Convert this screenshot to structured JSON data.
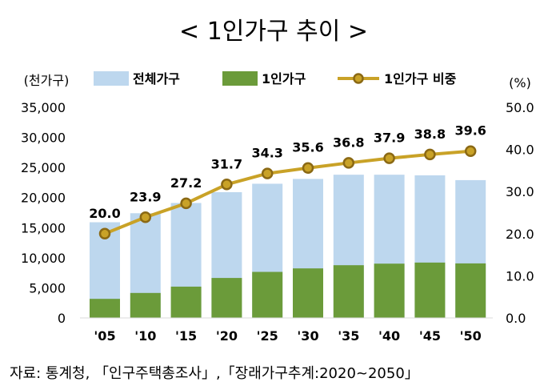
{
  "title": "< 1인가구 추이 >",
  "source": "자료: 통계청, 「인구주택총조사」,「장래가구추계:2020~2050」",
  "chart_data": {
    "type": "bar+line",
    "title": "< 1인가구 추이 >",
    "left_axis_unit": "(천가구)",
    "right_axis_unit": "(%)",
    "categories": [
      "'05",
      "'10",
      "'15",
      "'20",
      "'25",
      "'30",
      "'35",
      "'40",
      "'45",
      "'50"
    ],
    "left_ylim": [
      0,
      35000
    ],
    "left_ticks": [
      "35,000",
      "30,000",
      "25,000",
      "20,000",
      "15,000",
      "10,000",
      "5,000",
      "0"
    ],
    "left_tick_values": [
      35000,
      30000,
      25000,
      20000,
      15000,
      10000,
      5000,
      0
    ],
    "right_ylim": [
      0,
      50
    ],
    "right_ticks": [
      "50.0",
      "40.0",
      "30.0",
      "20.0",
      "10.0",
      "0.0"
    ],
    "right_tick_values": [
      50,
      40,
      30,
      20,
      10,
      0
    ],
    "series": [
      {
        "name": "전체가구",
        "type": "bar",
        "axis": "left",
        "color": "#bdd7ee",
        "values": [
          15900,
          17400,
          19100,
          20900,
          22300,
          23100,
          23800,
          23800,
          23700,
          22900
        ]
      },
      {
        "name": "1인가구",
        "type": "bar",
        "axis": "left",
        "color": "#6b9b3a",
        "values": [
          3170,
          4150,
          5200,
          6640,
          7650,
          8230,
          8760,
          9020,
          9200,
          9060
        ]
      },
      {
        "name": "1인가구 비중",
        "type": "line",
        "axis": "right",
        "color": "#c9a227",
        "marker_color": "#8b6914",
        "values": [
          20.0,
          23.9,
          27.2,
          31.7,
          34.3,
          35.6,
          36.8,
          37.9,
          38.8,
          39.6
        ],
        "labels": [
          "20.0",
          "23.9",
          "27.2",
          "31.7",
          "34.3",
          "35.6",
          "36.8",
          "37.9",
          "38.8",
          "39.6"
        ]
      }
    ],
    "legend": {
      "position": "top",
      "items": [
        "전체가구",
        "1인가구",
        "1인가구 비중"
      ]
    }
  }
}
